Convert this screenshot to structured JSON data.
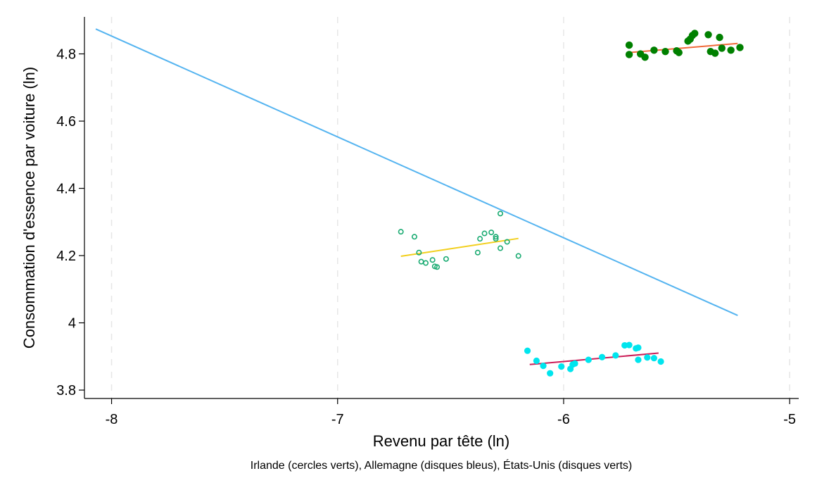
{
  "chart_data": {
    "type": "scatter",
    "title": "",
    "xlabel": "Revenu par tête (ln)",
    "ylabel": "Consommation d'essence par voiture (ln)",
    "note": "Irlande (cercles verts), Allemagne (disques bleus), États-Unis (disques verts)",
    "xlim": [
      -8.12,
      -4.96
    ],
    "ylim": [
      3.775,
      4.91
    ],
    "x_ticks": [
      -8,
      -7,
      -6,
      -5
    ],
    "x_tick_labels": [
      "-8",
      "-7",
      "-6",
      "-5"
    ],
    "y_ticks": [
      3.8,
      4.0,
      4.2,
      4.4,
      4.6,
      4.8
    ],
    "y_tick_labels": [
      "3.8",
      "4",
      "4.2",
      "4.4",
      "4.6",
      "4.8"
    ],
    "grid": "vertical-dashed",
    "colors": {
      "pooled_fit": "#55b4f0",
      "ireland_points": "#1aab72",
      "ireland_fit": "#f2cf1d",
      "germany_points": "#00e5ee",
      "germany_fit": "#cc1e58",
      "usa_points": "#008000",
      "usa_fit": "#f06a3a"
    },
    "lines": [
      {
        "role": "pooled_fit",
        "x": [
          -8.07,
          -5.23
        ],
        "y": [
          4.874,
          4.022
        ]
      },
      {
        "role": "ireland_fit",
        "x": [
          -6.72,
          -6.2
        ],
        "y": [
          4.198,
          4.251
        ]
      },
      {
        "role": "germany_fit",
        "x": [
          -6.15,
          -5.58
        ],
        "y": [
          3.876,
          3.91
        ]
      },
      {
        "role": "usa_fit",
        "x": [
          -5.71,
          -5.23
        ],
        "y": [
          4.804,
          4.831
        ]
      }
    ],
    "series": [
      {
        "role": "ireland",
        "marker": "hollow-circle",
        "points": [
          [
            -6.72,
            4.271
          ],
          [
            -6.66,
            4.256
          ],
          [
            -6.64,
            4.209
          ],
          [
            -6.63,
            4.182
          ],
          [
            -6.61,
            4.178
          ],
          [
            -6.58,
            4.187
          ],
          [
            -6.57,
            4.168
          ],
          [
            -6.56,
            4.166
          ],
          [
            -6.52,
            4.19
          ],
          [
            -6.38,
            4.209
          ],
          [
            -6.37,
            4.25
          ],
          [
            -6.35,
            4.266
          ],
          [
            -6.32,
            4.269
          ],
          [
            -6.3,
            4.256
          ],
          [
            -6.3,
            4.25
          ],
          [
            -6.28,
            4.222
          ],
          [
            -6.28,
            4.325
          ],
          [
            -6.25,
            4.241
          ],
          [
            -6.2,
            4.199
          ]
        ]
      },
      {
        "role": "germany",
        "marker": "filled-disc",
        "points": [
          [
            -6.16,
            3.917
          ],
          [
            -6.12,
            3.887
          ],
          [
            -6.09,
            3.872
          ],
          [
            -6.06,
            3.85
          ],
          [
            -6.01,
            3.87
          ],
          [
            -5.97,
            3.863
          ],
          [
            -5.96,
            3.876
          ],
          [
            -5.95,
            3.879
          ],
          [
            -5.89,
            3.89
          ],
          [
            -5.83,
            3.898
          ],
          [
            -5.77,
            3.903
          ],
          [
            -5.73,
            3.933
          ],
          [
            -5.71,
            3.934
          ],
          [
            -5.68,
            3.924
          ],
          [
            -5.67,
            3.926
          ],
          [
            -5.67,
            3.89
          ],
          [
            -5.63,
            3.897
          ],
          [
            -5.6,
            3.895
          ],
          [
            -5.57,
            3.885
          ]
        ]
      },
      {
        "role": "usa",
        "marker": "filled-disc",
        "points": [
          [
            -5.71,
            4.826
          ],
          [
            -5.71,
            4.798
          ],
          [
            -5.66,
            4.8
          ],
          [
            -5.64,
            4.79
          ],
          [
            -5.6,
            4.811
          ],
          [
            -5.55,
            4.807
          ],
          [
            -5.5,
            4.809
          ],
          [
            -5.49,
            4.804
          ],
          [
            -5.45,
            4.838
          ],
          [
            -5.44,
            4.844
          ],
          [
            -5.43,
            4.855
          ],
          [
            -5.42,
            4.861
          ],
          [
            -5.36,
            4.857
          ],
          [
            -5.35,
            4.807
          ],
          [
            -5.33,
            4.802
          ],
          [
            -5.31,
            4.849
          ],
          [
            -5.3,
            4.817
          ],
          [
            -5.26,
            4.811
          ],
          [
            -5.22,
            4.819
          ]
        ]
      }
    ]
  }
}
